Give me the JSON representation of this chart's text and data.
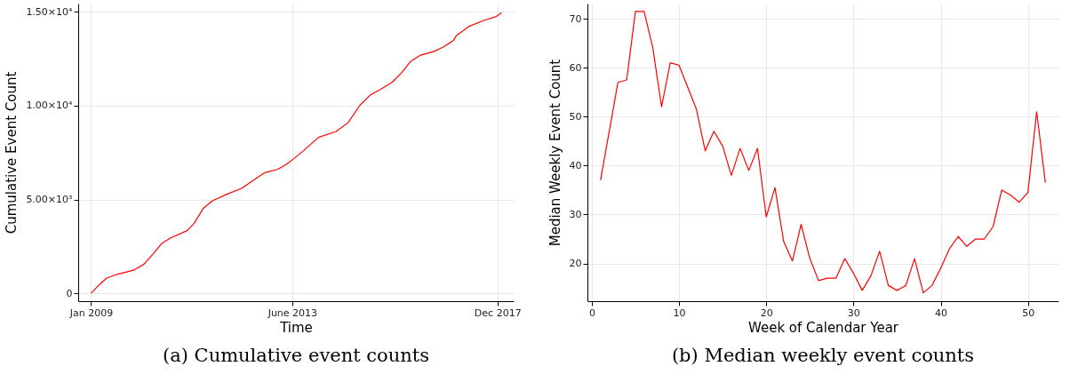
{
  "chart_data": [
    {
      "type": "line",
      "title": "(a) Cumulative event counts",
      "xlabel": "Time",
      "ylabel": "Cumulative Event Count",
      "color": "#ff0000",
      "grid": true,
      "x": [
        "2009-01-01",
        "2009-03-10",
        "2009-05-07",
        "2009-07-28",
        "2009-12-07",
        "2010-03-01",
        "2010-05-22",
        "2010-07-19",
        "2010-10-01",
        "2011-02-10",
        "2011-04-07",
        "2011-06-16",
        "2011-08-28",
        "2011-12-25",
        "2012-04-22",
        "2012-08-16",
        "2012-10-28",
        "2013-02-01",
        "2013-04-13",
        "2013-06-22",
        "2013-09-01",
        "2013-12-28",
        "2014-05-19",
        "2014-08-22",
        "2014-11-25",
        "2015-02-15",
        "2015-05-10",
        "2015-08-13",
        "2015-10-22",
        "2016-01-04",
        "2016-03-25",
        "2016-07-10",
        "2016-09-22",
        "2016-12-13",
        "2017-01-07",
        "2017-04-22",
        "2017-08-19",
        "2017-11-22",
        "2018-01-04"
      ],
      "values": [
        0,
        470,
        810,
        1010,
        1230,
        1550,
        2170,
        2640,
        2950,
        3340,
        3730,
        4500,
        4920,
        5280,
        5590,
        6130,
        6440,
        6600,
        6860,
        7220,
        7610,
        8310,
        8620,
        9090,
        10020,
        10560,
        10870,
        11260,
        11730,
        12350,
        12690,
        12890,
        13120,
        13470,
        13740,
        14240,
        14550,
        14750,
        14960
      ],
      "xlim": [
        "2008-09-20",
        "2018-04-10"
      ],
      "xticks": [
        {
          "value": "2009-01-01",
          "label": "Jan 2009"
        },
        {
          "value": "2013-06-01",
          "label": "June 2013"
        },
        {
          "value": "2017-12-01",
          "label": "Dec 2017"
        }
      ],
      "ylim": [
        -420,
        15440
      ],
      "yticks": [
        0,
        {
          "value": 5000,
          "label": "5.00×10³"
        },
        {
          "value": 10000,
          "label": "1.00×10⁴"
        },
        {
          "value": 15000,
          "label": "1.50×10⁴"
        }
      ]
    },
    {
      "type": "line",
      "title": "(b) Median weekly event counts",
      "xlabel": "Week of Calendar Year",
      "ylabel": "Median Weekly Event Count",
      "color": "#ff0000",
      "grid": true,
      "x": [
        1,
        2,
        3,
        4,
        5,
        6,
        7,
        8,
        9,
        10,
        11,
        12,
        13,
        14,
        15,
        16,
        17,
        18,
        19,
        20,
        21,
        22,
        23,
        24,
        25,
        26,
        27,
        28,
        29,
        30,
        31,
        32,
        33,
        34,
        35,
        36,
        37,
        38,
        39,
        40,
        41,
        42,
        43,
        44,
        45,
        46,
        47,
        48,
        49,
        50,
        51,
        52
      ],
      "values": [
        37,
        47,
        57,
        57.5,
        71.5,
        71.5,
        64,
        52,
        61,
        60.5,
        56,
        51.5,
        43,
        47,
        44,
        38,
        43.5,
        39,
        43.5,
        29.5,
        35.5,
        24.5,
        20.5,
        28,
        21,
        16.5,
        17,
        17,
        21,
        18,
        14.5,
        17.5,
        22.5,
        15.5,
        14.5,
        15.5,
        21,
        14,
        15.5,
        19,
        23,
        25.5,
        23.5,
        25,
        25,
        27.5,
        35,
        34,
        32.5,
        34.5,
        51,
        36.5
      ],
      "xlim": [
        -0.5,
        53.5
      ],
      "xticks": [
        0,
        10,
        20,
        30,
        40,
        50
      ],
      "ylim": [
        12.3,
        73.1
      ],
      "yticks": [
        20,
        30,
        40,
        50,
        60,
        70
      ]
    }
  ]
}
